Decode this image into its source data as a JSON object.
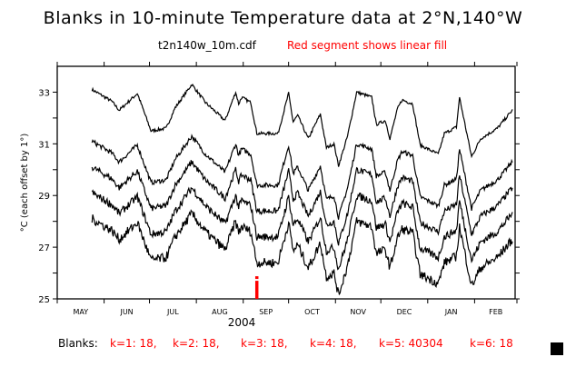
{
  "title": "Blanks in 10-minute Temperature data at 2°N,140°W",
  "file": "t2n140w_10m.cdf",
  "note": "Red segment shows linear fill",
  "blanks_label": "Blanks:",
  "blanks": [
    "k=1: 18,",
    "k=2: 18,",
    "k=3: 18,",
    "k=4: 18,",
    "k=5: 40304",
    "k=6: 18"
  ],
  "colors": {
    "line": "#000000",
    "fill_marker": "#ff0000",
    "note": "#ff0000"
  },
  "chart_data": {
    "type": "line",
    "title": "Blanks in 10-minute Temperature data at 2°N,140°W",
    "xlabel": "2004",
    "ylabel": "°C (each offset by 1°)",
    "x_units": "days since 2004-05-01",
    "xlim": [
      0,
      304
    ],
    "ylim": [
      25,
      34
    ],
    "y_ticks": [
      25,
      27,
      29,
      31,
      33
    ],
    "month_ticks": [
      {
        "label": "MAY",
        "start": 0
      },
      {
        "label": "JUN",
        "start": 31
      },
      {
        "label": "JUL",
        "start": 61
      },
      {
        "label": "AUG",
        "start": 92
      },
      {
        "label": "SEP",
        "start": 123
      },
      {
        "label": "OCT",
        "start": 153
      },
      {
        "label": "NOV",
        "start": 184
      },
      {
        "label": "DEC",
        "start": 214
      },
      {
        "label": "JAN",
        "start": 245
      },
      {
        "label": "FEB",
        "start": 276
      },
      {
        "label": "",
        "start": 304
      }
    ],
    "base_series": {
      "x": [
        23,
        36,
        41,
        53,
        62,
        72,
        78,
        89,
        98,
        111,
        118,
        120,
        122,
        128,
        132,
        146,
        153,
        156,
        159,
        166,
        174,
        178,
        183,
        186,
        192,
        198,
        208,
        211,
        217,
        220,
        225,
        228,
        235,
        240,
        252,
        256,
        264,
        266,
        270,
        274,
        280,
        291,
        301
      ],
      "y": [
        33.1,
        32.65,
        32.3,
        32.95,
        31.5,
        31.6,
        32.4,
        33.3,
        32.6,
        31.9,
        33.0,
        32.55,
        32.8,
        32.6,
        31.4,
        31.4,
        32.95,
        31.85,
        32.1,
        31.2,
        32.15,
        30.85,
        31.0,
        30.15,
        31.3,
        33.0,
        32.8,
        31.75,
        31.9,
        31.2,
        32.35,
        32.7,
        32.55,
        30.95,
        30.6,
        31.4,
        31.65,
        32.8,
        31.65,
        30.5,
        31.2,
        31.6,
        32.3
      ]
    },
    "series": [
      {
        "name": "series-1",
        "offset": 0
      },
      {
        "name": "series-2",
        "offset": -2
      },
      {
        "name": "series-3",
        "offset": -3
      },
      {
        "name": "series-4",
        "offset": -4
      },
      {
        "name": "series-5",
        "offset": -5
      }
    ],
    "linear_fill_marker": {
      "day": 132,
      "y_range": [
        25,
        25.7
      ]
    }
  }
}
